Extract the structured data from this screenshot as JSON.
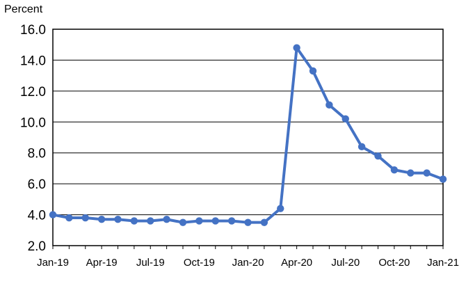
{
  "chart_data": {
    "type": "line",
    "ylabel": "Percent",
    "ylim": [
      2.0,
      16.0
    ],
    "yticks": [
      "2.0",
      "4.0",
      "6.0",
      "8.0",
      "10.0",
      "12.0",
      "14.0",
      "16.0"
    ],
    "xtick_labels": [
      "Jan-19",
      "Apr-19",
      "Jul-19",
      "Oct-19",
      "Jan-20",
      "Apr-20",
      "Jul-20",
      "Oct-20",
      "Jan-21"
    ],
    "x": [
      "Jan-19",
      "Feb-19",
      "Mar-19",
      "Apr-19",
      "May-19",
      "Jun-19",
      "Jul-19",
      "Aug-19",
      "Sep-19",
      "Oct-19",
      "Nov-19",
      "Dec-19",
      "Jan-20",
      "Feb-20",
      "Mar-20",
      "Apr-20",
      "May-20",
      "Jun-20",
      "Jul-20",
      "Aug-20",
      "Sep-20",
      "Oct-20",
      "Nov-20",
      "Dec-20",
      "Jan-21"
    ],
    "series": [
      {
        "values": [
          4.0,
          3.8,
          3.8,
          3.7,
          3.7,
          3.6,
          3.6,
          3.7,
          3.5,
          3.6,
          3.6,
          3.6,
          3.5,
          3.5,
          4.4,
          14.8,
          13.3,
          11.1,
          10.2,
          8.4,
          7.8,
          6.9,
          6.7,
          6.7,
          6.3
        ],
        "color": "#4472C4"
      }
    ],
    "grid": true
  }
}
